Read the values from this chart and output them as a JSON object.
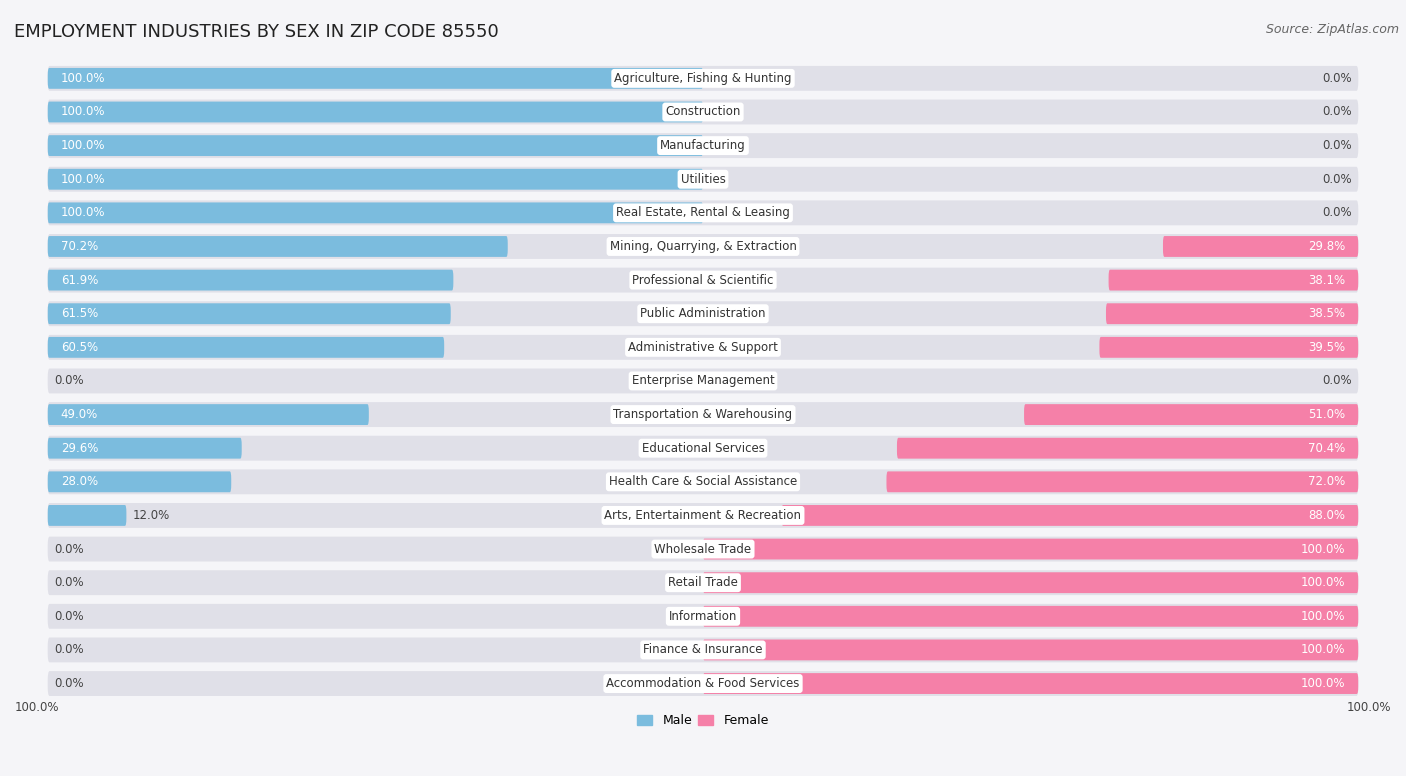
{
  "title": "EMPLOYMENT INDUSTRIES BY SEX IN ZIP CODE 85550",
  "source": "Source: ZipAtlas.com",
  "categories": [
    "Agriculture, Fishing & Hunting",
    "Construction",
    "Manufacturing",
    "Utilities",
    "Real Estate, Rental & Leasing",
    "Mining, Quarrying, & Extraction",
    "Professional & Scientific",
    "Public Administration",
    "Administrative & Support",
    "Enterprise Management",
    "Transportation & Warehousing",
    "Educational Services",
    "Health Care & Social Assistance",
    "Arts, Entertainment & Recreation",
    "Wholesale Trade",
    "Retail Trade",
    "Information",
    "Finance & Insurance",
    "Accommodation & Food Services"
  ],
  "male": [
    100.0,
    100.0,
    100.0,
    100.0,
    100.0,
    70.2,
    61.9,
    61.5,
    60.5,
    0.0,
    49.0,
    29.6,
    28.0,
    12.0,
    0.0,
    0.0,
    0.0,
    0.0,
    0.0
  ],
  "female": [
    0.0,
    0.0,
    0.0,
    0.0,
    0.0,
    29.8,
    38.1,
    38.5,
    39.5,
    0.0,
    51.0,
    70.4,
    72.0,
    88.0,
    100.0,
    100.0,
    100.0,
    100.0,
    100.0
  ],
  "male_color": "#7bbcde",
  "female_color": "#f580a8",
  "row_bg_color": "#e0e0e8",
  "bar_bg_color": "#dcdce8",
  "label_bg_color": "#ffffff",
  "background_color": "#f5f5f8",
  "title_fontsize": 13,
  "source_fontsize": 9,
  "label_fontsize": 8.5,
  "bar_label_fontsize": 8.5,
  "legend_fontsize": 9,
  "figsize": [
    14.06,
    7.76
  ],
  "dpi": 100,
  "xlim_left": -105,
  "xlim_right": 105,
  "bar_height": 0.62
}
